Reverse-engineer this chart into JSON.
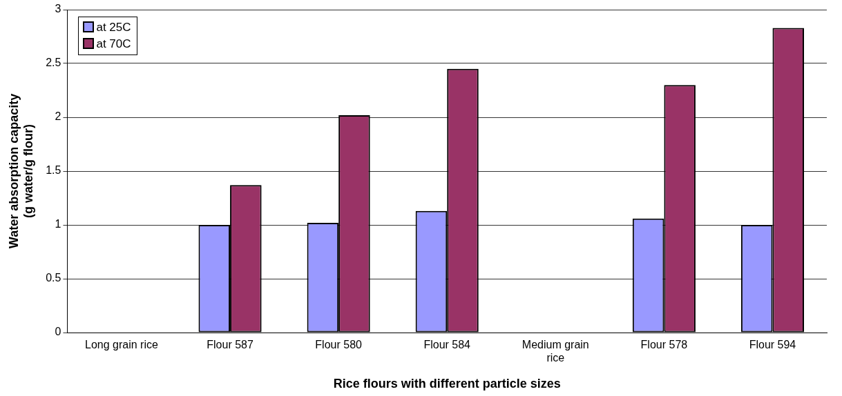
{
  "chart_data": {
    "type": "bar",
    "xlabel": "Rice flours with different particle sizes",
    "ylabel": "Water absorption capacity\n(g water/g flour)",
    "categories": [
      "Long grain rice",
      "Flour 587",
      "Flour 580",
      "Flour 584",
      "Medium grain rice",
      "Flour 578",
      "Flour 594"
    ],
    "series": [
      {
        "name": "at 25C",
        "color": "#9999ff",
        "values": [
          null,
          1.0,
          1.02,
          1.13,
          null,
          1.06,
          1.0
        ]
      },
      {
        "name": "at 70C",
        "color": "#993366",
        "values": [
          null,
          1.37,
          2.02,
          2.45,
          null,
          2.3,
          2.83
        ]
      }
    ],
    "ylim": [
      0,
      3
    ],
    "yticks": [
      0,
      0.5,
      1,
      1.5,
      2,
      2.5,
      3
    ],
    "grid": "y",
    "legend": "top left"
  }
}
